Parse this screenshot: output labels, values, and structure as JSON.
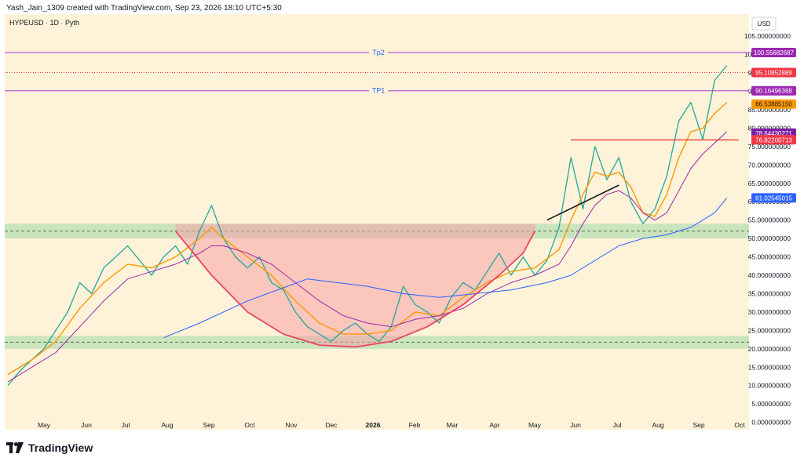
{
  "header": {
    "credit": "Yash_Jain_1309 created with TradingView.com, Sep 23, 2026 18:10 UTC+5:30",
    "symbol_line": "HYPEUSD · 1D · Pyth",
    "currency_button": "USD"
  },
  "footer": {
    "brand": "TradingView"
  },
  "chart_data": {
    "type": "line",
    "symbol": "HYPEUSD",
    "timeframe": "1D",
    "source": "Pyth",
    "currency": "USD",
    "x_labels": [
      "May",
      "Jun",
      "Jul",
      "Aug",
      "Sep",
      "Oct",
      "Nov",
      "Dec",
      "2026",
      "Feb",
      "Mar",
      "Apr",
      "May",
      "Jun",
      "Jul",
      "Aug",
      "Sep",
      "Oct"
    ],
    "y_ticks": [
      {
        "label": "0.000000000",
        "v": 0
      },
      {
        "label": "5.000000000",
        "v": 5
      },
      {
        "label": "10.000000000",
        "v": 10
      },
      {
        "label": "15.000000000",
        "v": 15
      },
      {
        "label": "20.000000000",
        "v": 20
      },
      {
        "label": "25.000000000",
        "v": 25
      },
      {
        "label": "30.000000000",
        "v": 30
      },
      {
        "label": "35.000000000",
        "v": 35
      },
      {
        "label": "40.000000000",
        "v": 40
      },
      {
        "label": "45.000000000",
        "v": 45
      },
      {
        "label": "50.000000000",
        "v": 50
      },
      {
        "label": "55.000000000",
        "v": 55
      },
      {
        "label": "60.000000000",
        "v": 60
      },
      {
        "label": "65.000000000",
        "v": 65
      },
      {
        "label": "70.000000000",
        "v": 70
      },
      {
        "label": "75.000000000",
        "v": 75
      },
      {
        "label": "80.000000000",
        "v": 80
      },
      {
        "label": "85.000000000",
        "v": 85
      },
      {
        "label": "90.000000000",
        "v": 90
      },
      {
        "label": "95.000000000",
        "v": 95
      },
      {
        "label": "100.000000000",
        "v": 100
      },
      {
        "label": "105.000000000",
        "v": 105
      }
    ],
    "ylim": [
      -2,
      111
    ],
    "price_tags": [
      {
        "label": "100.55682687",
        "v": 100.557,
        "color": "#9c27b0",
        "text_color": "#ffffff"
      },
      {
        "label": "95.10852889",
        "v": 95.109,
        "color": "#f23645",
        "text_color": "#ffffff"
      },
      {
        "label": "90.16496368",
        "v": 90.165,
        "color": "#9c27b0",
        "text_color": "#ffffff"
      },
      {
        "label": "86.53885150",
        "v": 86.539,
        "color": "#ff9800",
        "text_color": "#131722"
      },
      {
        "label": "78.64430271",
        "v": 78.644,
        "color": "#7b1fa2",
        "text_color": "#ffffff"
      },
      {
        "label": "76.82200713",
        "v": 76.822,
        "color": "#f23645",
        "text_color": "#ffffff"
      },
      {
        "label": "61.02545015",
        "v": 61.025,
        "color": "#2962ff",
        "text_color": "#ffffff"
      }
    ],
    "horizontal_levels": [
      {
        "label": "Tp2",
        "v": 100.557,
        "color": "#b55ad8"
      },
      {
        "label": "TP1",
        "v": 90.165,
        "color": "#b55ad8"
      }
    ],
    "zones": [
      {
        "from": 50.0,
        "to": 54.0,
        "mid": 52.0,
        "color": "#b9dfb5"
      },
      {
        "from": 20.0,
        "to": 23.5,
        "mid": 21.8,
        "color": "#b9dfb5"
      }
    ],
    "series": [
      {
        "key": "price",
        "color": "#26a69a",
        "points": [
          [
            0,
            10
          ],
          [
            2,
            14
          ],
          [
            4,
            17
          ],
          [
            6,
            20
          ],
          [
            8,
            25
          ],
          [
            10,
            30
          ],
          [
            12,
            38
          ],
          [
            14,
            35
          ],
          [
            16,
            42
          ],
          [
            18,
            45
          ],
          [
            20,
            48
          ],
          [
            22,
            44
          ],
          [
            24,
            40
          ],
          [
            26,
            45
          ],
          [
            28,
            48
          ],
          [
            30,
            43
          ],
          [
            32,
            52
          ],
          [
            34,
            59
          ],
          [
            36,
            50
          ],
          [
            38,
            45
          ],
          [
            40,
            42
          ],
          [
            42,
            45
          ],
          [
            44,
            38
          ],
          [
            46,
            36
          ],
          [
            48,
            30
          ],
          [
            50,
            26
          ],
          [
            52,
            24
          ],
          [
            54,
            22
          ],
          [
            56,
            25
          ],
          [
            58,
            27
          ],
          [
            60,
            24
          ],
          [
            62,
            22
          ],
          [
            64,
            26
          ],
          [
            66,
            37
          ],
          [
            68,
            32
          ],
          [
            70,
            30
          ],
          [
            72,
            27
          ],
          [
            74,
            34
          ],
          [
            76,
            38
          ],
          [
            78,
            36
          ],
          [
            80,
            41
          ],
          [
            82,
            46
          ],
          [
            84,
            40
          ],
          [
            86,
            45
          ],
          [
            88,
            40
          ],
          [
            90,
            44
          ],
          [
            92,
            53
          ],
          [
            94,
            72
          ],
          [
            96,
            58
          ],
          [
            98,
            75
          ],
          [
            100,
            66
          ],
          [
            102,
            72
          ],
          [
            104,
            60
          ],
          [
            106,
            54
          ],
          [
            108,
            58
          ],
          [
            110,
            67
          ],
          [
            112,
            82
          ],
          [
            114,
            87
          ],
          [
            116,
            77
          ],
          [
            118,
            93
          ],
          [
            120,
            97
          ]
        ]
      },
      {
        "key": "ema_fast",
        "color": "#ff9800",
        "points": [
          [
            0,
            13
          ],
          [
            4,
            17
          ],
          [
            8,
            22
          ],
          [
            12,
            31
          ],
          [
            16,
            38
          ],
          [
            20,
            43
          ],
          [
            24,
            42
          ],
          [
            28,
            45
          ],
          [
            32,
            50
          ],
          [
            34,
            53
          ],
          [
            36,
            50
          ],
          [
            40,
            45
          ],
          [
            44,
            40
          ],
          [
            48,
            33
          ],
          [
            52,
            27
          ],
          [
            56,
            24
          ],
          [
            60,
            24
          ],
          [
            64,
            25
          ],
          [
            68,
            30
          ],
          [
            72,
            29
          ],
          [
            76,
            34
          ],
          [
            80,
            38
          ],
          [
            84,
            41
          ],
          [
            88,
            42
          ],
          [
            92,
            47
          ],
          [
            94,
            55
          ],
          [
            96,
            62
          ],
          [
            98,
            68
          ],
          [
            100,
            67
          ],
          [
            102,
            68
          ],
          [
            104,
            64
          ],
          [
            106,
            57
          ],
          [
            108,
            56
          ],
          [
            110,
            62
          ],
          [
            112,
            72
          ],
          [
            114,
            79
          ],
          [
            116,
            80
          ],
          [
            118,
            84
          ],
          [
            120,
            87
          ]
        ]
      },
      {
        "key": "ema_mid",
        "color": "#9c27b0",
        "points": [
          [
            0,
            11
          ],
          [
            4,
            15
          ],
          [
            8,
            19
          ],
          [
            12,
            26
          ],
          [
            16,
            33
          ],
          [
            20,
            39
          ],
          [
            24,
            41
          ],
          [
            28,
            43
          ],
          [
            32,
            46
          ],
          [
            34,
            48
          ],
          [
            36,
            48
          ],
          [
            40,
            46
          ],
          [
            44,
            43
          ],
          [
            48,
            38
          ],
          [
            52,
            33
          ],
          [
            56,
            29
          ],
          [
            60,
            27
          ],
          [
            64,
            26
          ],
          [
            68,
            28
          ],
          [
            72,
            29
          ],
          [
            76,
            31
          ],
          [
            80,
            35
          ],
          [
            84,
            38
          ],
          [
            88,
            40
          ],
          [
            92,
            43
          ],
          [
            94,
            48
          ],
          [
            96,
            54
          ],
          [
            98,
            59
          ],
          [
            100,
            62
          ],
          [
            102,
            63
          ],
          [
            104,
            61
          ],
          [
            106,
            57
          ],
          [
            108,
            55
          ],
          [
            110,
            57
          ],
          [
            112,
            63
          ],
          [
            114,
            69
          ],
          [
            116,
            73
          ],
          [
            118,
            76
          ],
          [
            120,
            79
          ]
        ]
      },
      {
        "key": "sma_long",
        "color": "#2962ff",
        "points": [
          [
            26,
            23
          ],
          [
            32,
            27
          ],
          [
            40,
            33
          ],
          [
            50,
            39
          ],
          [
            60,
            37
          ],
          [
            66,
            35
          ],
          [
            72,
            34
          ],
          [
            78,
            35
          ],
          [
            84,
            36
          ],
          [
            90,
            38
          ],
          [
            94,
            40
          ],
          [
            98,
            44
          ],
          [
            102,
            48
          ],
          [
            106,
            50
          ],
          [
            110,
            51
          ],
          [
            114,
            53
          ],
          [
            118,
            57
          ],
          [
            120,
            61
          ]
        ]
      },
      {
        "key": "rounding_bottom",
        "color": "#e94560",
        "points": [
          [
            28,
            52
          ],
          [
            34,
            40
          ],
          [
            40,
            30
          ],
          [
            46,
            24
          ],
          [
            52,
            21
          ],
          [
            58,
            20.5
          ],
          [
            64,
            22
          ],
          [
            70,
            26
          ],
          [
            76,
            32
          ],
          [
            82,
            40
          ],
          [
            86,
            46
          ],
          [
            88,
            52
          ]
        ]
      },
      {
        "key": "trendline",
        "color": "#131722",
        "points": [
          [
            90,
            55
          ],
          [
            102,
            64.5
          ]
        ]
      },
      {
        "key": "resistance",
        "color": "#e53935",
        "points": [
          [
            94,
            76.8
          ],
          [
            122,
            76.8
          ]
        ]
      }
    ]
  }
}
